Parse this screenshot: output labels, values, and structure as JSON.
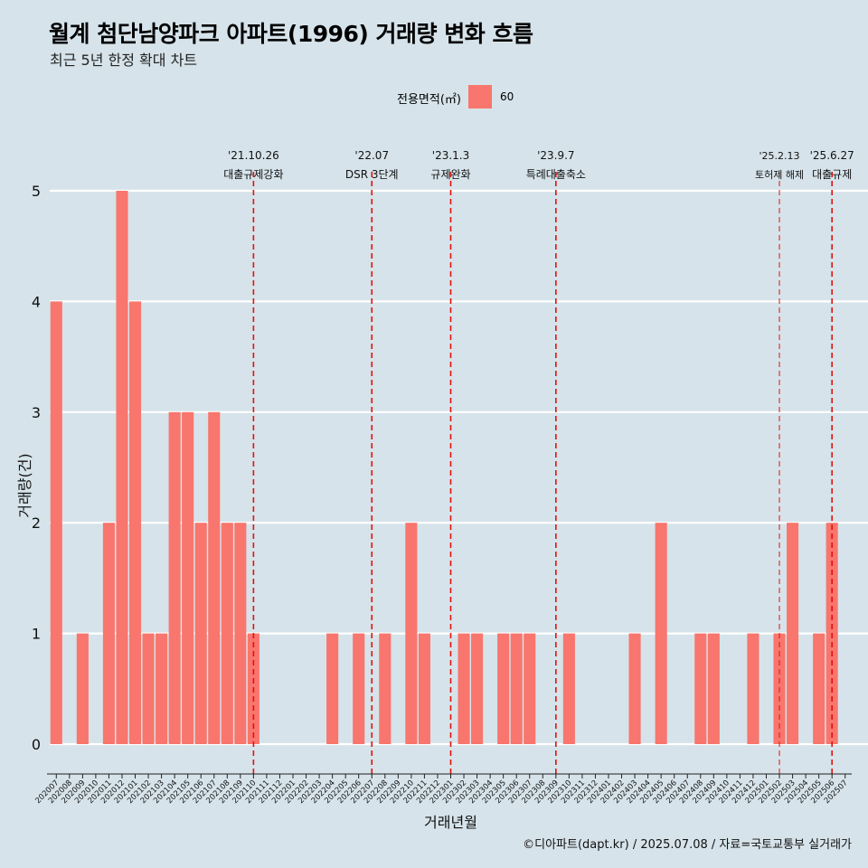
{
  "header": {
    "title": "월계 첨단남양파크 아파트(1996) 거래량 변화 흐름",
    "subtitle": "최근 5년 한정 확대 차트"
  },
  "legend": {
    "title": "전용면적(㎡)",
    "items": [
      {
        "label": "60",
        "color": "#f8766d"
      }
    ]
  },
  "caption": "©디아파트(dapt.kr) / 2025.07.08 / 자료=국토교통부 실거래가",
  "colors": {
    "background": "#d6e3ea",
    "bar": "#f8766d",
    "event_line": "#e3120b",
    "grid": "#ffffff"
  },
  "chart_data": {
    "type": "bar",
    "xlabel": "거래년월",
    "ylabel": "거래량(건)",
    "ylim": [
      0,
      5
    ],
    "yticks": [
      0,
      1,
      2,
      3,
      4,
      5
    ],
    "grid": true,
    "legend_position": "top",
    "categories": [
      "202007",
      "202008",
      "202009",
      "202010",
      "202011",
      "202012",
      "202101",
      "202102",
      "202103",
      "202104",
      "202105",
      "202106",
      "202107",
      "202108",
      "202109",
      "202110",
      "202111",
      "202112",
      "202201",
      "202202",
      "202203",
      "202204",
      "202205",
      "202206",
      "202207",
      "202208",
      "202209",
      "202210",
      "202211",
      "202212",
      "202301",
      "202302",
      "202303",
      "202304",
      "202305",
      "202306",
      "202307",
      "202308",
      "202309",
      "202310",
      "202311",
      "202312",
      "202401",
      "202402",
      "202403",
      "202404",
      "202405",
      "202406",
      "202407",
      "202408",
      "202409",
      "202410",
      "202411",
      "202412",
      "202501",
      "202502",
      "202503",
      "202504",
      "202505",
      "202506",
      "202507"
    ],
    "series": [
      {
        "name": "60",
        "values": [
          4,
          0,
          1,
          0,
          2,
          5,
          4,
          1,
          1,
          3,
          3,
          2,
          3,
          2,
          2,
          1,
          0,
          0,
          0,
          0,
          0,
          1,
          0,
          1,
          0,
          1,
          0,
          2,
          1,
          0,
          0,
          1,
          1,
          0,
          1,
          1,
          1,
          0,
          0,
          1,
          0,
          0,
          0,
          0,
          1,
          0,
          2,
          0,
          0,
          1,
          1,
          0,
          0,
          1,
          0,
          1,
          2,
          0,
          1,
          2,
          0
        ]
      }
    ],
    "events": [
      {
        "x": "202110",
        "date": "'21.10.26",
        "label": "대출규제강화"
      },
      {
        "x": "202207",
        "date": "'22.07",
        "label": "DSR 3단계"
      },
      {
        "x": "202301",
        "date": "'23.1.3",
        "label": "규제완화"
      },
      {
        "x": "202309",
        "date": "'23.9.7",
        "label": "특례대출축소"
      },
      {
        "x": "202502",
        "date": "'25.2.13",
        "label": "토허제 해제"
      },
      {
        "x": "202506",
        "date": "'25.6.27",
        "label": "대출규제"
      }
    ]
  }
}
